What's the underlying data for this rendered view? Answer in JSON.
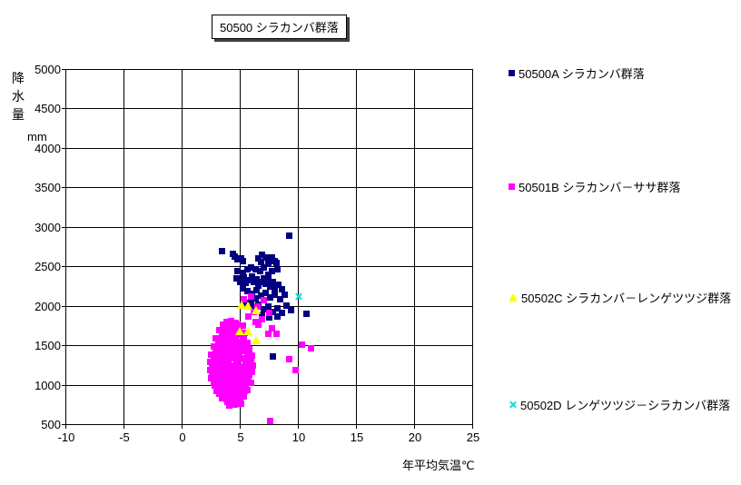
{
  "title": "50500 シラカンバ群落",
  "colors": {
    "series_a": "#000080",
    "series_b": "#ff00ff",
    "series_c": "#ffff00",
    "series_d": "#00dede",
    "grid": "#000000",
    "background": "#ffffff",
    "text": "#000000"
  },
  "chart_data": {
    "type": "scatter",
    "title": "50500 シラカンバ群落",
    "xlabel": "年平均気温℃",
    "ylabel": "降水量",
    "ylabel_unit": "mm",
    "xlim": [
      -10,
      25
    ],
    "ylim": [
      500,
      5000
    ],
    "xticks": [
      -10,
      -5,
      0,
      5,
      10,
      15,
      20,
      25
    ],
    "yticks": [
      500,
      1000,
      1500,
      2000,
      2500,
      3000,
      3500,
      4000,
      4500,
      5000
    ],
    "grid": true,
    "legend_position": "right",
    "series": [
      {
        "name": "50500A シラカンバ群落",
        "marker": "square",
        "color": "#000080",
        "points": [
          [
            9.2,
            2880
          ],
          [
            3.4,
            2690
          ],
          [
            4.4,
            2650
          ],
          [
            4.5,
            2620
          ],
          [
            4.8,
            2585
          ],
          [
            5.1,
            2600
          ],
          [
            5.2,
            2560
          ],
          [
            6.6,
            2600
          ],
          [
            6.9,
            2640
          ],
          [
            7.2,
            2610
          ],
          [
            7.7,
            2605
          ],
          [
            8.0,
            2560
          ],
          [
            6.8,
            2550
          ],
          [
            7.4,
            2530
          ],
          [
            8.1,
            2540
          ],
          [
            4.8,
            2433
          ],
          [
            5.2,
            2410
          ],
          [
            5.6,
            2456
          ],
          [
            5.9,
            2479
          ],
          [
            6.3,
            2456
          ],
          [
            6.7,
            2433
          ],
          [
            7.0,
            2479
          ],
          [
            7.4,
            2387
          ],
          [
            7.7,
            2433
          ],
          [
            8.2,
            2456
          ],
          [
            4.7,
            2340
          ],
          [
            5.0,
            2300
          ],
          [
            5.3,
            2350
          ],
          [
            5.5,
            2280
          ],
          [
            5.8,
            2320
          ],
          [
            6.0,
            2360
          ],
          [
            6.2,
            2290
          ],
          [
            6.4,
            2330
          ],
          [
            6.6,
            2250
          ],
          [
            6.8,
            2300
          ],
          [
            7.0,
            2340
          ],
          [
            7.2,
            2270
          ],
          [
            7.4,
            2310
          ],
          [
            7.6,
            2240
          ],
          [
            7.8,
            2290
          ],
          [
            8.0,
            2220
          ],
          [
            8.3,
            2260
          ],
          [
            8.6,
            2200
          ],
          [
            5.2,
            2210
          ],
          [
            5.6,
            2180
          ],
          [
            6.0,
            2150
          ],
          [
            6.4,
            2190
          ],
          [
            6.8,
            2120
          ],
          [
            7.2,
            2160
          ],
          [
            7.6,
            2100
          ],
          [
            8.0,
            2140
          ],
          [
            8.4,
            2080
          ],
          [
            8.8,
            2130
          ],
          [
            5.9,
            2060
          ],
          [
            6.3,
            2090
          ],
          [
            5.4,
            2030
          ],
          [
            6.1,
            1980
          ],
          [
            6.6,
            2010
          ],
          [
            7.0,
            1950
          ],
          [
            7.4,
            1990
          ],
          [
            7.8,
            1920
          ],
          [
            8.2,
            1960
          ],
          [
            8.6,
            1900
          ],
          [
            9.0,
            2000
          ],
          [
            9.4,
            1940
          ],
          [
            6.9,
            1870
          ],
          [
            7.5,
            1850
          ],
          [
            8.2,
            1858
          ],
          [
            10.7,
            1890
          ],
          [
            7.8,
            1350
          ]
        ]
      },
      {
        "name": "50501B シラカンバ－ササ群落",
        "marker": "square",
        "color": "#ff00ff",
        "points": [
          [
            5.3,
            2080
          ],
          [
            5.9,
            2110
          ],
          [
            6.5,
            1985
          ],
          [
            7.0,
            2065
          ],
          [
            7.5,
            1905
          ],
          [
            6.3,
            1790
          ],
          [
            6.9,
            1825
          ],
          [
            6.2,
            1920
          ],
          [
            5.7,
            1860
          ],
          [
            6.6,
            1750
          ],
          [
            7.7,
            1710
          ],
          [
            7.4,
            1640
          ],
          [
            8.1,
            1640
          ],
          [
            9.2,
            1320
          ],
          [
            9.8,
            1180
          ],
          [
            10.3,
            1500
          ],
          [
            11.1,
            1455
          ],
          [
            7.6,
            540
          ],
          [
            3.8,
            1790
          ],
          [
            4.2,
            1800
          ],
          [
            4.6,
            1780
          ],
          [
            3.5,
            1750
          ],
          [
            4.0,
            1760
          ],
          [
            4.4,
            1740
          ],
          [
            4.8,
            1755
          ],
          [
            3.7,
            1720
          ],
          [
            4.1,
            1700
          ],
          [
            4.5,
            1715
          ],
          [
            4.9,
            1730
          ],
          [
            5.2,
            1745
          ],
          [
            3.2,
            1680
          ],
          [
            3.6,
            1660
          ],
          [
            4.0,
            1675
          ],
          [
            4.4,
            1650
          ],
          [
            4.8,
            1665
          ],
          [
            5.1,
            1640
          ],
          [
            5.4,
            1655
          ],
          [
            3.4,
            1620
          ],
          [
            3.8,
            1605
          ],
          [
            4.2,
            1630
          ],
          [
            4.6,
            1610
          ],
          [
            5.0,
            1625
          ],
          [
            5.3,
            1600
          ],
          [
            2.9,
            1580
          ],
          [
            3.3,
            1560
          ],
          [
            3.7,
            1575
          ],
          [
            4.1,
            1550
          ],
          [
            4.5,
            1565
          ],
          [
            4.9,
            1540
          ],
          [
            5.2,
            1555
          ],
          [
            5.6,
            1530
          ],
          [
            3.1,
            1520
          ],
          [
            3.5,
            1505
          ],
          [
            3.9,
            1530
          ],
          [
            4.3,
            1510
          ],
          [
            4.7,
            1525
          ],
          [
            5.1,
            1500
          ],
          [
            5.5,
            1515
          ],
          [
            2.7,
            1480
          ],
          [
            3.1,
            1460
          ],
          [
            3.5,
            1475
          ],
          [
            3.9,
            1450
          ],
          [
            4.3,
            1465
          ],
          [
            4.7,
            1440
          ],
          [
            5.0,
            1455
          ],
          [
            5.4,
            1430
          ],
          [
            5.8,
            1445
          ],
          [
            2.9,
            1420
          ],
          [
            3.3,
            1405
          ],
          [
            3.7,
            1430
          ],
          [
            4.1,
            1410
          ],
          [
            4.5,
            1425
          ],
          [
            4.9,
            1400
          ],
          [
            5.3,
            1415
          ],
          [
            5.7,
            1405
          ],
          [
            2.5,
            1380
          ],
          [
            2.9,
            1360
          ],
          [
            3.3,
            1375
          ],
          [
            3.7,
            1350
          ],
          [
            4.1,
            1365
          ],
          [
            4.5,
            1340
          ],
          [
            4.8,
            1355
          ],
          [
            5.2,
            1330
          ],
          [
            5.6,
            1345
          ],
          [
            6.0,
            1360
          ],
          [
            2.7,
            1320
          ],
          [
            3.1,
            1305
          ],
          [
            3.5,
            1330
          ],
          [
            3.9,
            1310
          ],
          [
            4.3,
            1325
          ],
          [
            4.7,
            1300
          ],
          [
            5.1,
            1315
          ],
          [
            5.5,
            1305
          ],
          [
            5.9,
            1320
          ],
          [
            2.4,
            1280
          ],
          [
            2.8,
            1260
          ],
          [
            3.2,
            1275
          ],
          [
            3.6,
            1250
          ],
          [
            4.0,
            1265
          ],
          [
            4.4,
            1240
          ],
          [
            4.7,
            1255
          ],
          [
            5.1,
            1230
          ],
          [
            5.5,
            1245
          ],
          [
            5.9,
            1260
          ],
          [
            2.6,
            1220
          ],
          [
            3.0,
            1205
          ],
          [
            3.4,
            1230
          ],
          [
            3.8,
            1210
          ],
          [
            4.2,
            1225
          ],
          [
            4.6,
            1200
          ],
          [
            5.0,
            1215
          ],
          [
            5.4,
            1205
          ],
          [
            5.8,
            1220
          ],
          [
            6.1,
            1235
          ],
          [
            2.4,
            1180
          ],
          [
            2.8,
            1160
          ],
          [
            3.2,
            1175
          ],
          [
            3.6,
            1150
          ],
          [
            4.0,
            1165
          ],
          [
            4.4,
            1140
          ],
          [
            4.8,
            1155
          ],
          [
            5.2,
            1130
          ],
          [
            5.6,
            1145
          ],
          [
            6.0,
            1160
          ],
          [
            2.6,
            1120
          ],
          [
            3.0,
            1105
          ],
          [
            3.4,
            1130
          ],
          [
            3.8,
            1110
          ],
          [
            4.2,
            1125
          ],
          [
            4.6,
            1100
          ],
          [
            5.0,
            1115
          ],
          [
            5.4,
            1105
          ],
          [
            5.8,
            1120
          ],
          [
            2.5,
            1080
          ],
          [
            2.9,
            1060
          ],
          [
            3.3,
            1075
          ],
          [
            3.7,
            1050
          ],
          [
            4.1,
            1065
          ],
          [
            4.5,
            1040
          ],
          [
            4.9,
            1055
          ],
          [
            5.3,
            1030
          ],
          [
            5.7,
            1045
          ],
          [
            2.7,
            1020
          ],
          [
            3.1,
            1005
          ],
          [
            3.5,
            1030
          ],
          [
            3.9,
            1010
          ],
          [
            4.3,
            1025
          ],
          [
            4.7,
            1000
          ],
          [
            5.1,
            1015
          ],
          [
            5.5,
            1005
          ],
          [
            5.9,
            1020
          ],
          [
            2.8,
            980
          ],
          [
            3.2,
            960
          ],
          [
            3.6,
            975
          ],
          [
            4.0,
            950
          ],
          [
            4.4,
            965
          ],
          [
            4.8,
            940
          ],
          [
            5.2,
            955
          ],
          [
            5.6,
            930
          ],
          [
            3.0,
            920
          ],
          [
            3.4,
            905
          ],
          [
            3.8,
            930
          ],
          [
            4.2,
            910
          ],
          [
            4.6,
            925
          ],
          [
            5.0,
            900
          ],
          [
            5.4,
            915
          ],
          [
            3.2,
            880
          ],
          [
            3.6,
            860
          ],
          [
            4.0,
            875
          ],
          [
            4.4,
            850
          ],
          [
            4.8,
            865
          ],
          [
            5.2,
            840
          ],
          [
            3.4,
            820
          ],
          [
            3.8,
            805
          ],
          [
            4.2,
            830
          ],
          [
            4.6,
            810
          ],
          [
            5.0,
            825
          ],
          [
            5.3,
            845
          ],
          [
            3.9,
            780
          ],
          [
            4.3,
            760
          ],
          [
            4.7,
            775
          ],
          [
            5.1,
            755
          ],
          [
            4.1,
            735
          ],
          [
            4.5,
            745
          ]
        ]
      },
      {
        "name": "50502C シラカンバ－レンゲツツジ群落",
        "marker": "triangle",
        "color": "#ffff00",
        "points": [
          [
            5.1,
            2020
          ],
          [
            5.6,
            2010
          ],
          [
            6.3,
            1950
          ],
          [
            4.9,
            1690
          ],
          [
            5.6,
            1690
          ],
          [
            6.3,
            1570
          ]
        ]
      },
      {
        "name": "50502D レンゲツツジ－シラカンバ群落",
        "marker": "x",
        "color": "#00dede",
        "points": [
          [
            10.0,
            2110
          ]
        ]
      }
    ]
  }
}
